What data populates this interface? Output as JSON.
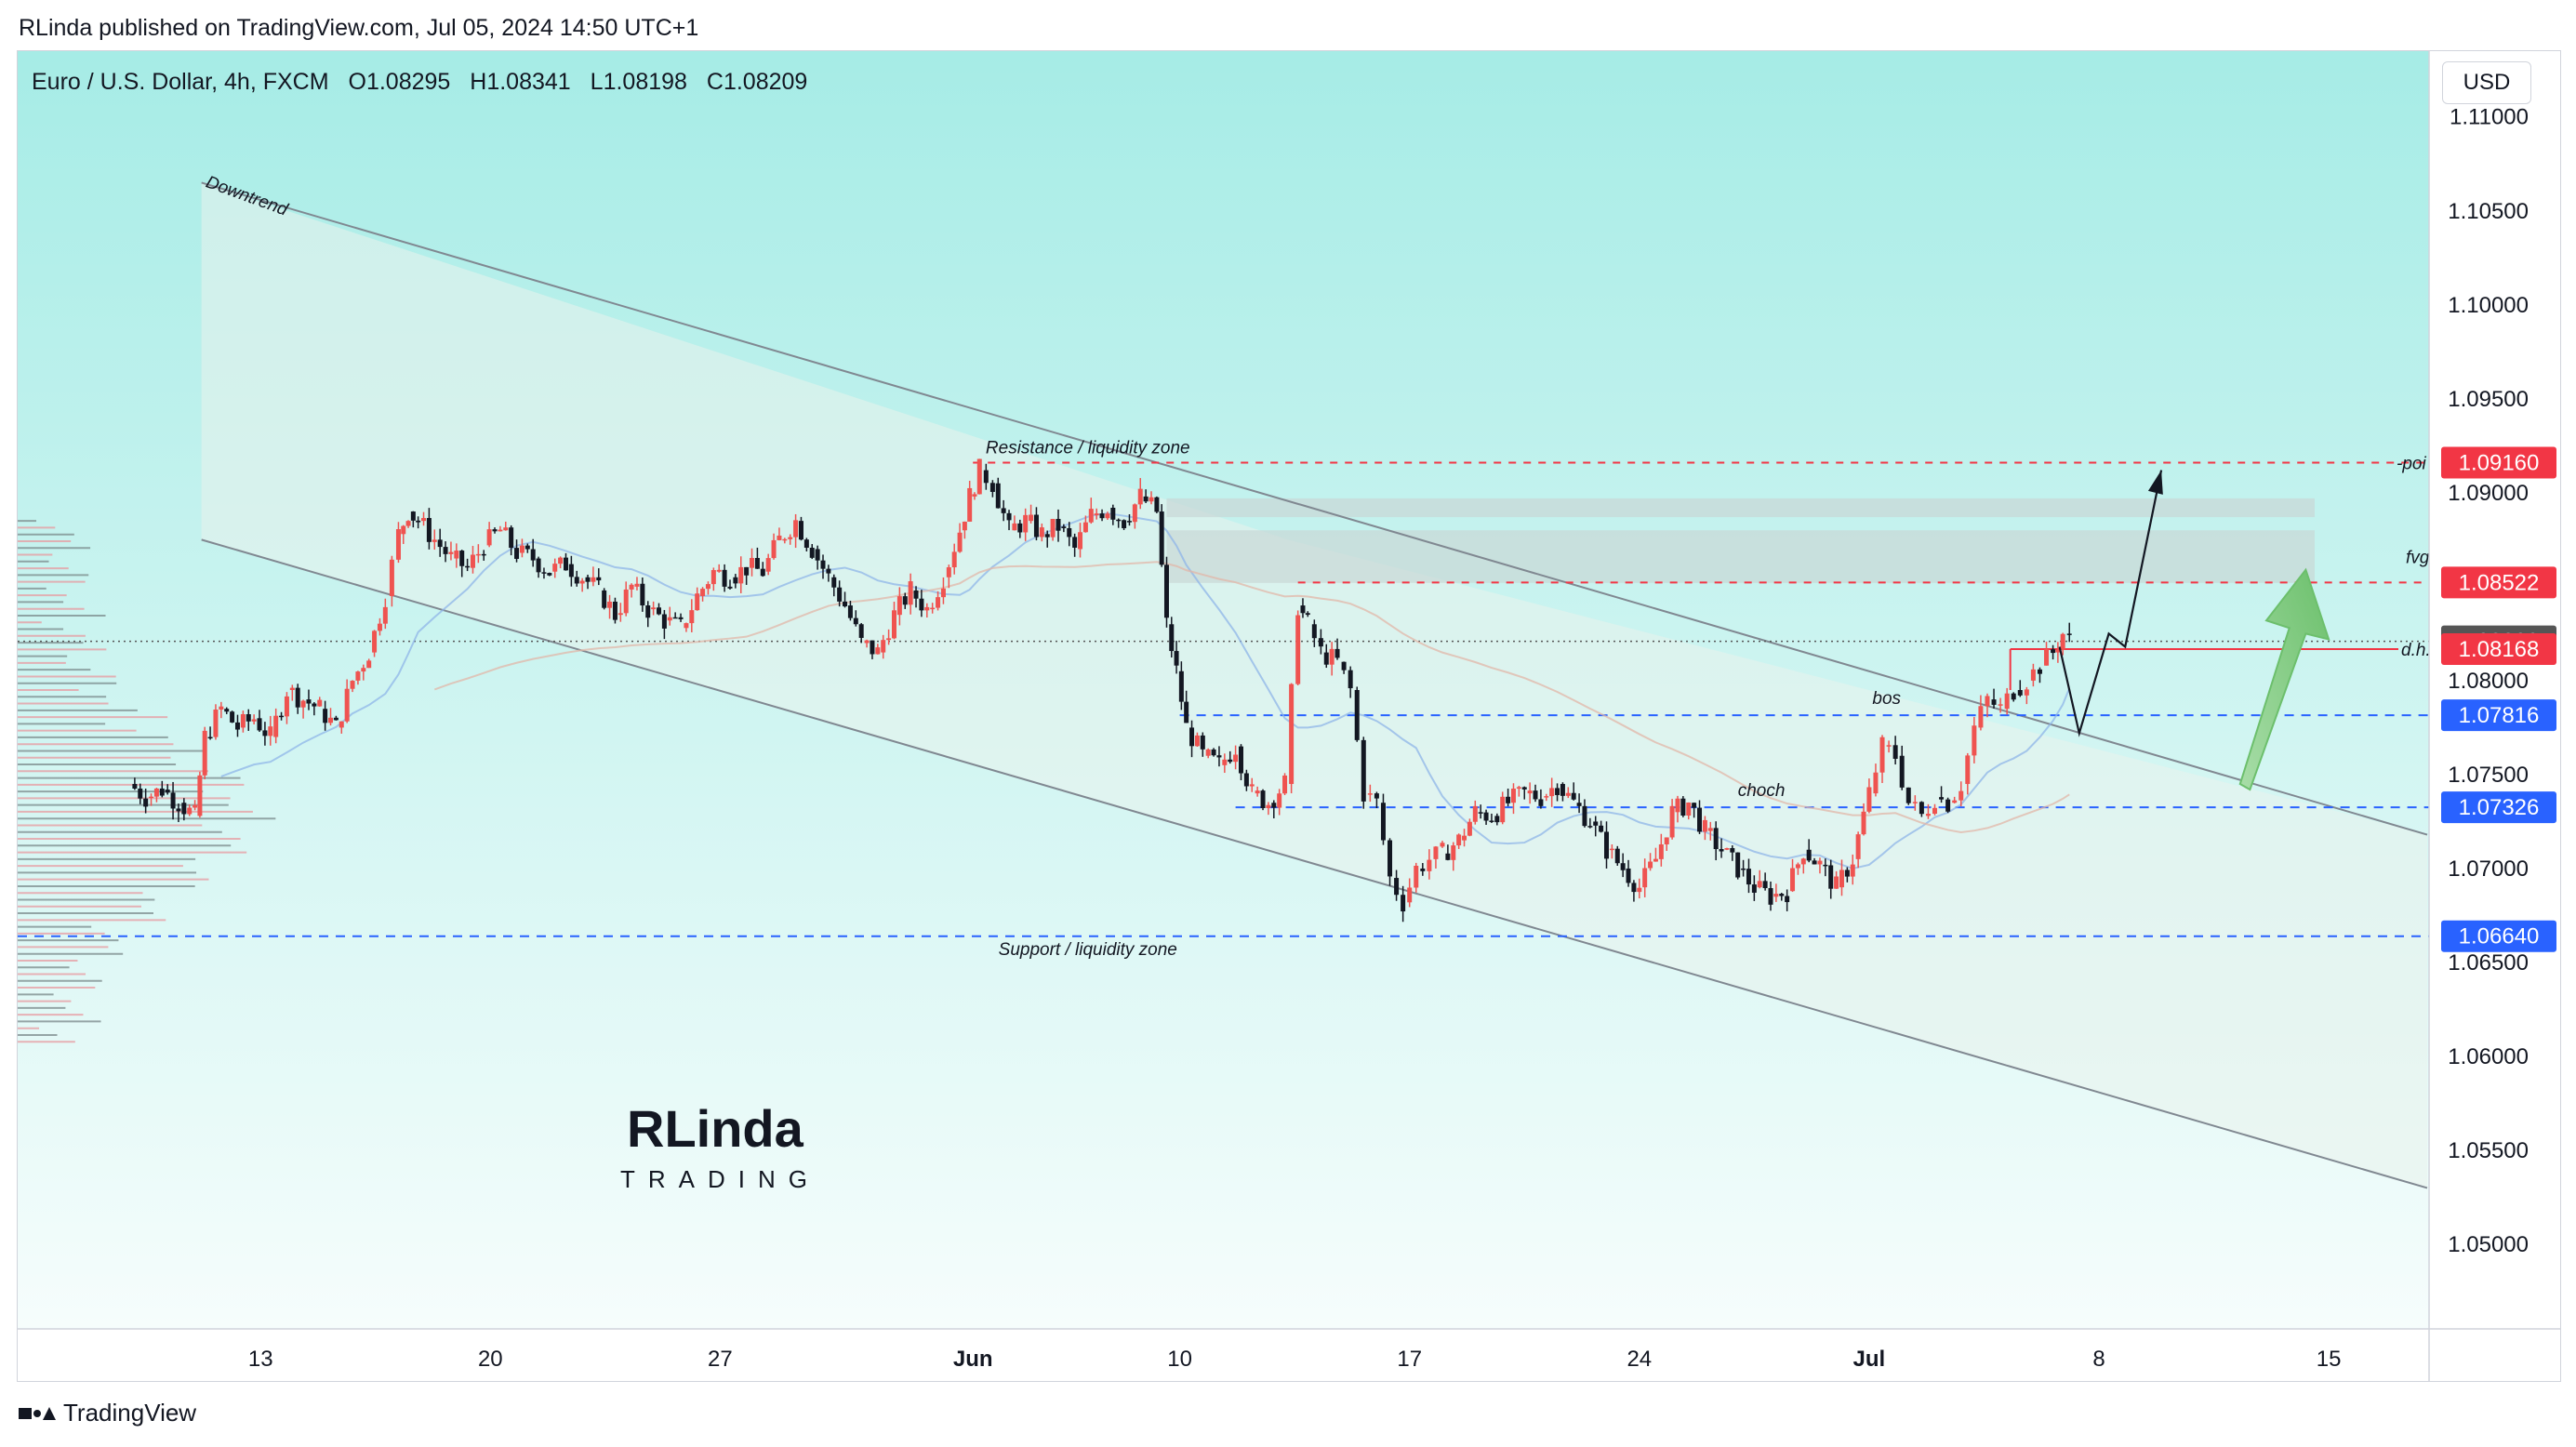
{
  "header": {
    "published_by": "RLinda published on TradingView.com, Jul 05, 2024 14:50 UTC+1"
  },
  "legend": {
    "symbol": "Euro / U.S. Dollar, 4h, FXCM",
    "open": "O1.08295",
    "high": "H1.08341",
    "low": "L1.08198",
    "close": "C1.08209"
  },
  "currency_button": "USD",
  "footer": {
    "brand": "TradingView"
  },
  "logo": {
    "word": "RLinda",
    "sub": "TRADING"
  },
  "colors": {
    "up": "#ef5350",
    "down": "#131722",
    "blue_line": "#2962ff",
    "red_line": "#f23645",
    "bg_top": "#a6ece6",
    "bg_bottom": "#f6fdfc",
    "arrow_green": "#7cc97c"
  },
  "chart_data": {
    "type": "candlestick",
    "symbol": "EURUSD",
    "timeframe": "4h",
    "ylim": [
      1.0455,
      1.1135
    ],
    "y_ticks": [
      "1.11000",
      "1.10500",
      "1.10000",
      "1.09500",
      "1.09000",
      "1.08500",
      "1.08000",
      "1.07500",
      "1.07000",
      "1.06500",
      "1.06000",
      "1.05500",
      "1.05000"
    ],
    "x_ticks": [
      {
        "label": "13",
        "day": 4
      },
      {
        "label": "20",
        "day": 11
      },
      {
        "label": "27",
        "day": 18
      },
      {
        "label": "Jun",
        "day": 25.7
      },
      {
        "label": "10",
        "day": 32
      },
      {
        "label": "17",
        "day": 39
      },
      {
        "label": "24",
        "day": 46
      },
      {
        "label": "Jul",
        "day": 53
      },
      {
        "label": "8",
        "day": 60
      },
      {
        "label": "15",
        "day": 67
      }
    ],
    "price_tags": [
      {
        "label": "1.09160",
        "value": 1.0916,
        "color": "#f23645"
      },
      {
        "label": "1.08522",
        "value": 1.08522,
        "color": "#f23645"
      },
      {
        "label": "1.08209",
        "value": 1.08209,
        "color": "#555555"
      },
      {
        "label": "1.08168",
        "value": 1.08168,
        "color": "#f23645"
      },
      {
        "label": "1.07816",
        "value": 1.07816,
        "color": "#2962ff"
      },
      {
        "label": "1.07326",
        "value": 1.07326,
        "color": "#2962ff"
      },
      {
        "label": "1.06640",
        "value": 1.0664,
        "color": "#2962ff"
      }
    ],
    "annotations": [
      {
        "text": "Downtrend"
      },
      {
        "text": "Resistance / liquidity zone"
      },
      {
        "text": "Support / liquidity zone"
      },
      {
        "text": "-poi"
      },
      {
        "text": "fvg"
      },
      {
        "text": "d.h."
      },
      {
        "text": "bos"
      },
      {
        "text": "choch"
      }
    ],
    "close_path": [
      [
        0,
        1.0745
      ],
      [
        0.5,
        1.0738
      ],
      [
        1,
        1.0742
      ],
      [
        1.5,
        1.0735
      ],
      [
        2,
        1.0728
      ],
      [
        2.3,
        1.077
      ],
      [
        2.8,
        1.0785
      ],
      [
        3.3,
        1.0775
      ],
      [
        3.8,
        1.078
      ],
      [
        4.3,
        1.077
      ],
      [
        4.8,
        1.0795
      ],
      [
        5.3,
        1.079
      ],
      [
        5.8,
        1.0785
      ],
      [
        6.3,
        1.0775
      ],
      [
        6.8,
        1.08
      ],
      [
        7.3,
        1.0815
      ],
      [
        7.8,
        1.0845
      ],
      [
        8.2,
        1.0878
      ],
      [
        8.5,
        1.089
      ],
      [
        8.8,
        1.0885
      ],
      [
        9.3,
        1.0875
      ],
      [
        9.8,
        1.0865
      ],
      [
        10.3,
        1.086
      ],
      [
        10.8,
        1.0872
      ],
      [
        11.3,
        1.088
      ],
      [
        11.8,
        1.0868
      ],
      [
        12.3,
        1.0865
      ],
      [
        12.8,
        1.0858
      ],
      [
        13.3,
        1.0862
      ],
      [
        13.8,
        1.0855
      ],
      [
        14.3,
        1.0848
      ],
      [
        14.8,
        1.0835
      ],
      [
        15.3,
        1.085
      ],
      [
        15.8,
        1.0838
      ],
      [
        16.3,
        1.0832
      ],
      [
        16.8,
        1.0828
      ],
      [
        17.3,
        1.0845
      ],
      [
        17.8,
        1.0858
      ],
      [
        18.3,
        1.0855
      ],
      [
        18.8,
        1.086
      ],
      [
        19.3,
        1.0858
      ],
      [
        19.8,
        1.0875
      ],
      [
        20.3,
        1.0885
      ],
      [
        20.8,
        1.087
      ],
      [
        21.3,
        1.0855
      ],
      [
        21.8,
        1.084
      ],
      [
        22.3,
        1.082
      ],
      [
        22.8,
        1.0815
      ],
      [
        23.3,
        1.0835
      ],
      [
        23.8,
        1.0848
      ],
      [
        24.3,
        1.0838
      ],
      [
        24.8,
        1.0855
      ],
      [
        25.3,
        1.088
      ],
      [
        25.6,
        1.0898
      ],
      [
        25.9,
        1.0912
      ],
      [
        26.3,
        1.0905
      ],
      [
        26.8,
        1.088
      ],
      [
        27.3,
        1.0885
      ],
      [
        27.8,
        1.0878
      ],
      [
        28.3,
        1.0882
      ],
      [
        28.8,
        1.087
      ],
      [
        29.3,
        1.0888
      ],
      [
        29.8,
        1.0892
      ],
      [
        30.3,
        1.0885
      ],
      [
        30.8,
        1.0898
      ],
      [
        31.3,
        1.089
      ],
      [
        31.6,
        1.083
      ],
      [
        31.9,
        1.0805
      ],
      [
        32.2,
        1.0775
      ],
      [
        32.7,
        1.076
      ],
      [
        33.2,
        1.0755
      ],
      [
        33.7,
        1.0765
      ],
      [
        34.2,
        1.074
      ],
      [
        34.7,
        1.0735
      ],
      [
        35.2,
        1.0745
      ],
      [
        35.6,
        1.084
      ],
      [
        35.9,
        1.083
      ],
      [
        36.3,
        1.0815
      ],
      [
        36.8,
        1.081
      ],
      [
        37.2,
        1.0795
      ],
      [
        37.6,
        1.074
      ],
      [
        38.0,
        1.0735
      ],
      [
        38.4,
        1.0695
      ],
      [
        38.8,
        1.0682
      ],
      [
        39.2,
        1.07
      ],
      [
        39.6,
        1.0705
      ],
      [
        40.0,
        1.0708
      ],
      [
        40.5,
        1.0715
      ],
      [
        41.0,
        1.073
      ],
      [
        41.5,
        1.0728
      ],
      [
        42.0,
        1.0735
      ],
      [
        42.5,
        1.074
      ],
      [
        43.0,
        1.0738
      ],
      [
        43.5,
        1.0745
      ],
      [
        44.0,
        1.0735
      ],
      [
        44.5,
        1.0725
      ],
      [
        45.0,
        1.071
      ],
      [
        45.5,
        1.07
      ],
      [
        46.0,
        1.069
      ],
      [
        46.5,
        1.0705
      ],
      [
        47.0,
        1.073
      ],
      [
        47.5,
        1.0735
      ],
      [
        48.0,
        1.072
      ],
      [
        48.5,
        1.071
      ],
      [
        49.0,
        1.07
      ],
      [
        49.5,
        1.069
      ],
      [
        50.0,
        1.0685
      ],
      [
        50.5,
        1.0688
      ],
      [
        51.0,
        1.071
      ],
      [
        51.5,
        1.0702
      ],
      [
        52.0,
        1.069
      ],
      [
        52.5,
        1.0705
      ],
      [
        53.0,
        1.074
      ],
      [
        53.4,
        1.0765
      ],
      [
        53.8,
        1.076
      ],
      [
        54.2,
        1.0735
      ],
      [
        54.6,
        1.0728
      ],
      [
        55.0,
        1.0738
      ],
      [
        55.4,
        1.0735
      ],
      [
        55.8,
        1.0745
      ],
      [
        56.2,
        1.0775
      ],
      [
        56.6,
        1.079
      ],
      [
        57.0,
        1.0785
      ],
      [
        57.4,
        1.0795
      ],
      [
        57.8,
        1.08
      ],
      [
        58.2,
        1.0808
      ],
      [
        58.6,
        1.0815
      ],
      [
        58.9,
        1.0825
      ],
      [
        59.1,
        1.0821
      ]
    ],
    "notes": "Candles approximated from the visual price path; days counted from start of visible range (~May 9)."
  }
}
